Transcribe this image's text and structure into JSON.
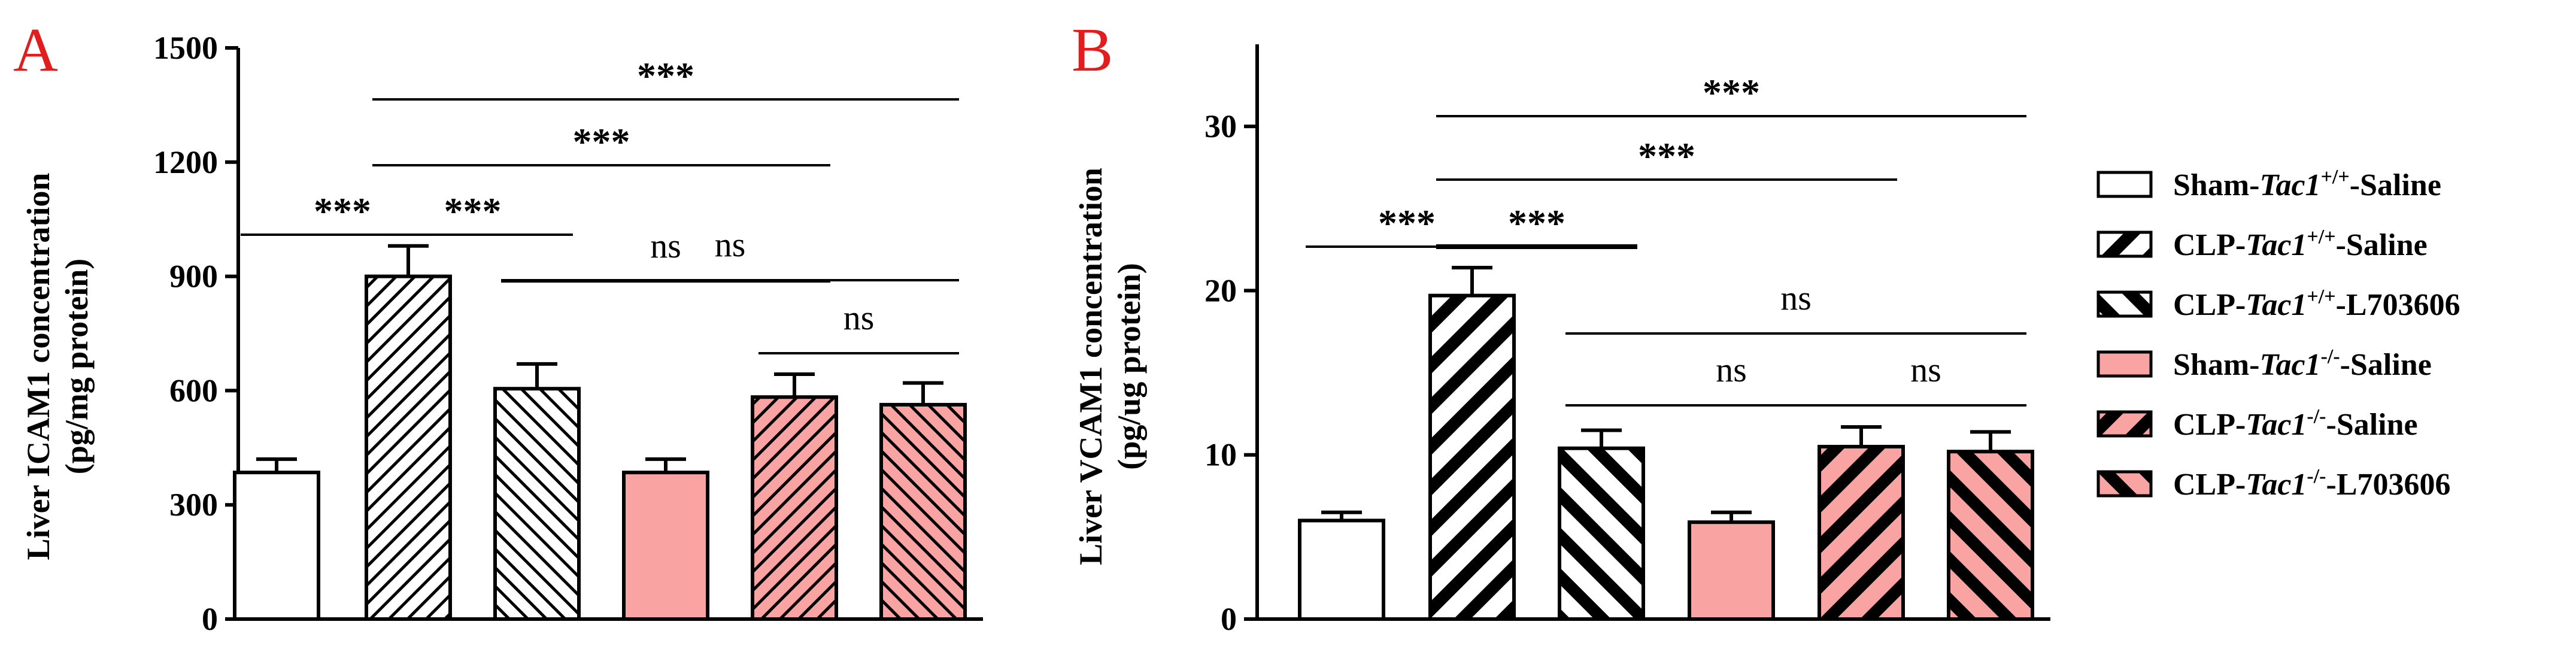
{
  "chart_data": [
    {
      "panel": "A",
      "type": "bar",
      "ylabel_line1": "Liver ICAM1 concentration",
      "ylabel_line2": "(pg/mg protein)",
      "ylim": [
        0,
        1500
      ],
      "yticks": [
        "0",
        "300",
        "600",
        "900",
        "1200",
        "1500"
      ],
      "categories": [
        "Sham-Tac1+/+-Saline",
        "CLP-Tac1+/+-Saline",
        "CLP-Tac1+/+-L703606",
        "Sham-Tac1-/--Saline",
        "CLP-Tac1-/--Saline",
        "CLP-Tac1-/--L703606"
      ],
      "values": [
        385,
        900,
        605,
        385,
        583,
        563
      ],
      "errors": [
        35,
        80,
        65,
        35,
        60,
        57
      ],
      "comparisons": [
        {
          "from": 0,
          "to": 1,
          "label": "***",
          "level": 1
        },
        {
          "from": 1,
          "to": 2,
          "label": "***",
          "level": 1
        },
        {
          "from": 2,
          "to": 4,
          "label": "ns",
          "level": 1
        },
        {
          "from": 4,
          "to": 5,
          "label": "ns",
          "level": 1
        },
        {
          "from": 2,
          "to": 5,
          "label": "ns",
          "level": 2
        },
        {
          "from": 1,
          "to": 4,
          "label": "***",
          "level": 3
        },
        {
          "from": 1,
          "to": 5,
          "label": "***",
          "level": 4
        }
      ]
    },
    {
      "panel": "B",
      "type": "bar",
      "ylabel_line1": "Liver VCAM1 concentration",
      "ylabel_line2": "(pg/ug protein)",
      "ylim": [
        0,
        35
      ],
      "yticks": [
        "0",
        "10",
        "20",
        "30"
      ],
      "categories": [
        "Sham-Tac1+/+-Saline",
        "CLP-Tac1+/+-Saline",
        "CLP-Tac1+/+-L703606",
        "Sham-Tac1-/--Saline",
        "CLP-Tac1-/--Saline",
        "CLP-Tac1-/--L703606"
      ],
      "values": [
        6.0,
        19.7,
        10.4,
        5.9,
        10.5,
        10.2
      ],
      "errors": [
        0.5,
        1.7,
        1.1,
        0.6,
        1.2,
        1.2
      ],
      "comparisons": [
        {
          "from": 0,
          "to": 1,
          "label": "***",
          "level": 1
        },
        {
          "from": 1,
          "to": 2,
          "label": "***",
          "level": 1
        },
        {
          "from": 2,
          "to": 4,
          "label": "ns",
          "level": 1
        },
        {
          "from": 4,
          "to": 5,
          "label": "ns",
          "level": 1
        },
        {
          "from": 2,
          "to": 5,
          "label": "ns",
          "level": 2
        },
        {
          "from": 1,
          "to": 4,
          "label": "***",
          "level": 3
        },
        {
          "from": 1,
          "to": 5,
          "label": "***",
          "level": 4
        }
      ]
    }
  ],
  "legend": [
    {
      "prefix": "Sham-",
      "gene": "Tac1",
      "sup": "+/+",
      "suffix": "-Saline",
      "fill": "#ffffff",
      "pattern": "none"
    },
    {
      "prefix": "CLP-",
      "gene": "Tac1",
      "sup": "+/+",
      "suffix": "-Saline",
      "fill": "#ffffff",
      "pattern": "forward"
    },
    {
      "prefix": "CLP-",
      "gene": "Tac1",
      "sup": "+/+",
      "suffix": "-L703606",
      "fill": "#ffffff",
      "pattern": "backward"
    },
    {
      "prefix": "Sham-",
      "gene": "Tac1",
      "sup": "-/-",
      "suffix": "-Saline",
      "fill": "#f9a3a3",
      "pattern": "none"
    },
    {
      "prefix": "CLP-",
      "gene": "Tac1",
      "sup": "-/-",
      "suffix": "-Saline",
      "fill": "#f9a3a3",
      "pattern": "forward"
    },
    {
      "prefix": "CLP-",
      "gene": "Tac1",
      "sup": "-/-",
      "suffix": "-L703606",
      "fill": "#f9a3a3",
      "pattern": "backward"
    }
  ],
  "colors": {
    "panel_letter": "#e11d1d",
    "pink_fill": "#f9a3a3",
    "white_fill": "#ffffff",
    "stroke": "#000000"
  }
}
